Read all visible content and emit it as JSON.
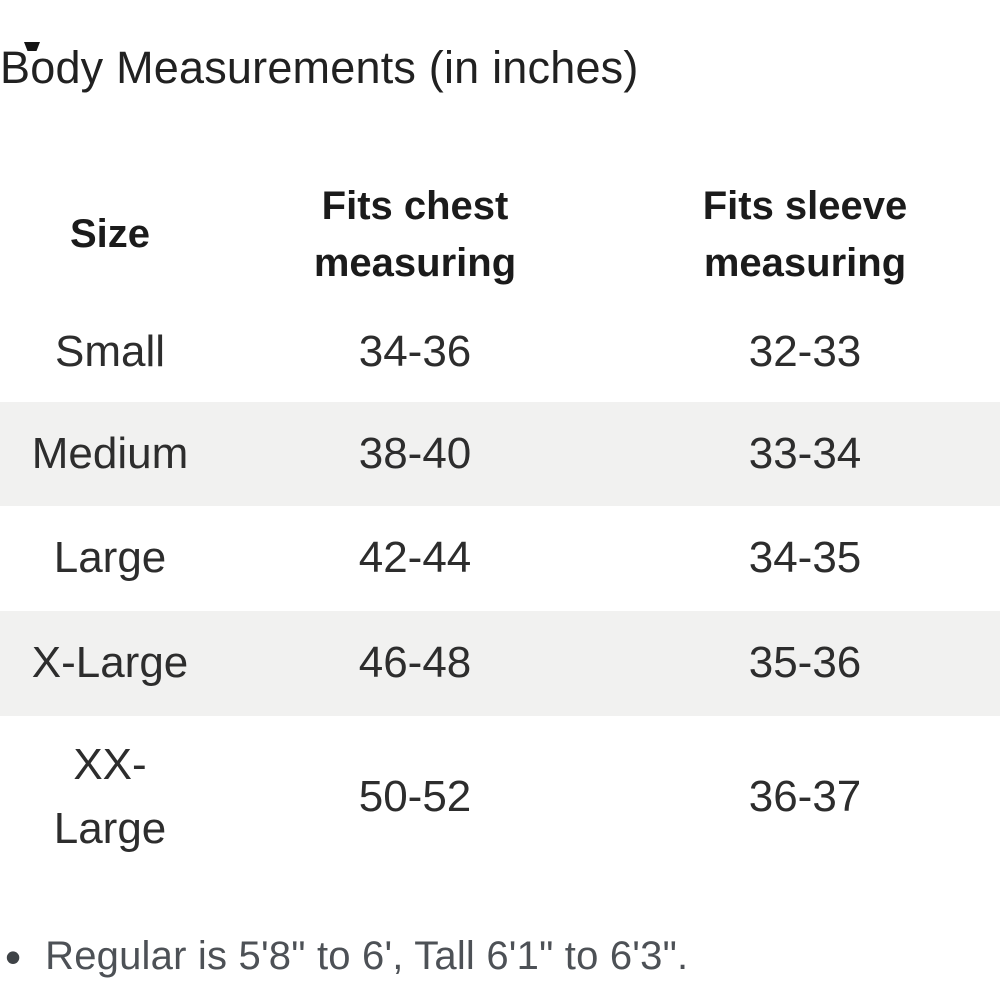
{
  "page": {
    "title": "Body Measurements (in inches)"
  },
  "table": {
    "columns": [
      {
        "id": "size",
        "label": "Size"
      },
      {
        "id": "chest",
        "label": "Fits chest measuring"
      },
      {
        "id": "sleeve",
        "label": "Fits sleeve measuring"
      }
    ],
    "rows": [
      {
        "size": "Small",
        "chest": "34-36",
        "sleeve": "32-33"
      },
      {
        "size": "Medium",
        "chest": "38-40",
        "sleeve": "33-34"
      },
      {
        "size": "Large",
        "chest": "42-44",
        "sleeve": "34-35"
      },
      {
        "size": "X-Large",
        "chest": "46-48",
        "sleeve": "35-36"
      },
      {
        "size": "XX-Large",
        "chest": "50-52",
        "sleeve": "36-37"
      }
    ]
  },
  "note": {
    "bullet": "•",
    "text": "Regular is 5'8\" to 6', Tall 6'1\" to 6'3\"."
  },
  "colors": {
    "background": "#ffffff",
    "row_alt_background": "#f1f1f0",
    "header_text": "#1b1b1b",
    "body_text": "#2d2d2d",
    "note_text": "#4d5156"
  }
}
